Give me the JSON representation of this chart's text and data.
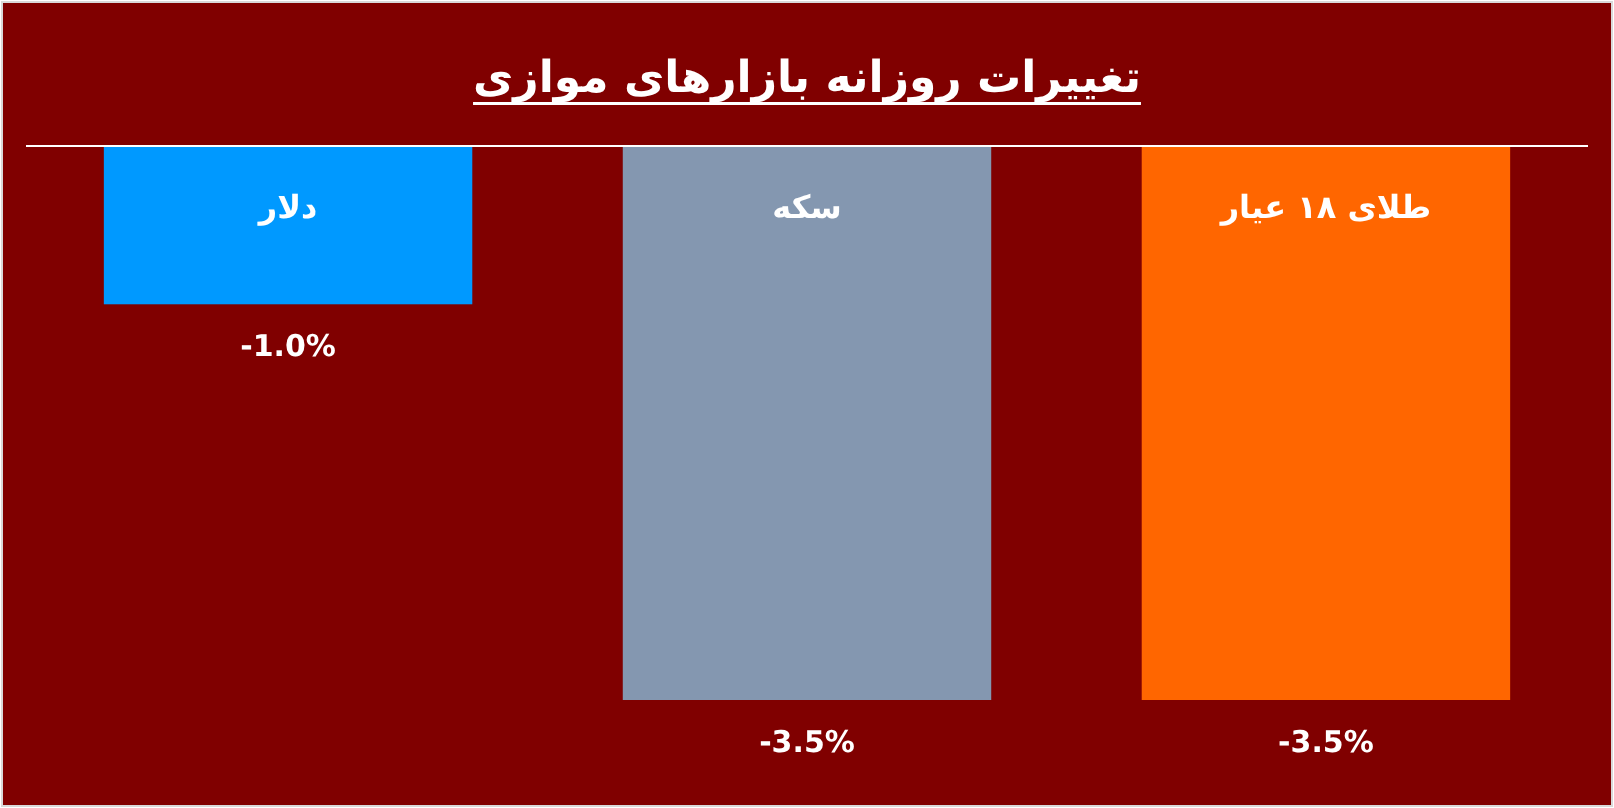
{
  "chart_data": {
    "type": "bar",
    "title": "تغییرات روزانه بازارهای موازی",
    "categories": [
      "دلار",
      "سکه",
      "طلای ۱۸ عیار"
    ],
    "values": [
      -1.0,
      -3.5,
      -3.5
    ],
    "colors": [
      "#0099ff",
      "#8497b0",
      "#ff6600"
    ],
    "value_labels": [
      "-1.0%",
      "-3.5%",
      "-3.5%"
    ],
    "grid": false,
    "legend": false
  }
}
